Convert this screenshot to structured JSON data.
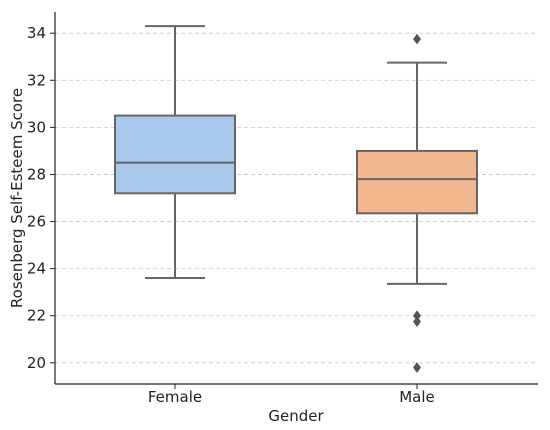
{
  "chart_data": {
    "type": "box",
    "xlabel": "Gender",
    "ylabel": "Rosenberg Self-Esteem Score",
    "ylim": [
      19.1,
      34.9
    ],
    "yticks": [
      20,
      22,
      24,
      26,
      28,
      30,
      32,
      34
    ],
    "grid": "horizontal dashed",
    "categories": [
      "Female",
      "Male"
    ],
    "boxes": [
      {
        "category": "Female",
        "whisker_low": 23.6,
        "q1": 27.2,
        "median": 28.5,
        "q3": 30.5,
        "whisker_high": 34.3,
        "outliers": [],
        "color": "#a9c8ec"
      },
      {
        "category": "Male",
        "whisker_low": 23.35,
        "q1": 26.35,
        "median": 27.8,
        "q3": 29.0,
        "whisker_high": 32.75,
        "outliers": [
          33.75,
          22.0,
          21.75,
          19.8
        ],
        "color": "#f2b78f"
      }
    ]
  }
}
